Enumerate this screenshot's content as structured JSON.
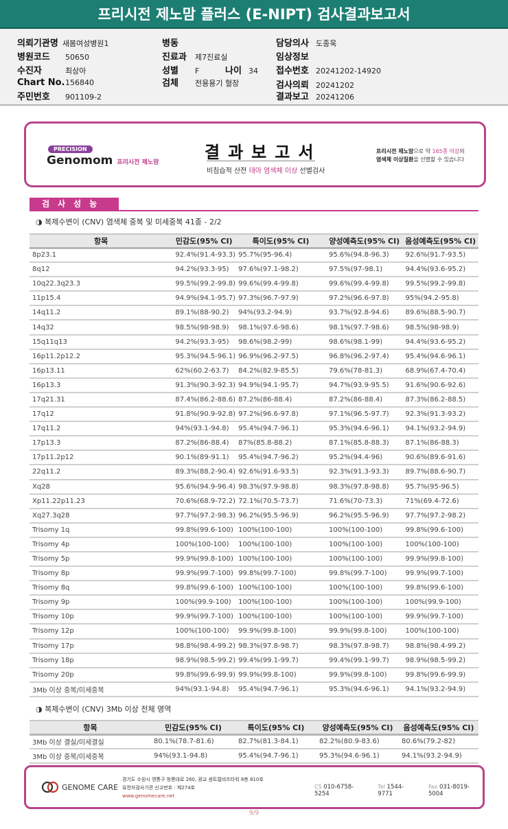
{
  "title": "프리시전 제노맘 플러스 (E-NIPT) 검사결과보고서",
  "patient": {
    "hospital_label": "의뢰기관명",
    "hospital": "새봄여성병원1",
    "code_label": "병원코드",
    "code": "50650",
    "name_label": "수진자",
    "name": "최상아",
    "chart_label": "Chart No.",
    "chart": "156840",
    "rrn_label": "주민번호",
    "rrn": "901109-2",
    "ward_label": "병동",
    "ward": "",
    "dept_label": "진료과",
    "dept": "제7진료실",
    "sex_label": "성별",
    "sex": "F",
    "age_label": "나이",
    "age": "34",
    "specimen_label": "검체",
    "specimen": "전용용기 혈장",
    "doctor_label": "담당의사",
    "doctor": "도종욱",
    "clinical_label": "임상정보",
    "clinical": "",
    "receipt_label": "접수번호",
    "receipt": "20241202-14920",
    "request_label": "검사의뢰",
    "request": "20241202",
    "report_label": "결과보고",
    "report": "20241206"
  },
  "report_card": {
    "precision": "PRECISION",
    "brand": "Genomom",
    "brand_sub": "프리시전 제노맘",
    "title": "결과보고서",
    "subtitle_a": "비침습적 산전 ",
    "subtitle_b": "태아 염색체 이상",
    "subtitle_c": " 선별검사",
    "note_a": "프리시전 제노맘",
    "note_b": "으로 약 ",
    "note_c": "165종 이상",
    "note_d": "의",
    "note_e": "염색체 이상질환",
    "note_f": "을 선별할 수 있습니다"
  },
  "section": "검사성능",
  "table1": {
    "subtitle": "◑ 복제수변이 (CNV) 염색체 중복 및 미세중복 41종 - 2/2",
    "headers": [
      "항목",
      "민감도(95% CI)",
      "특이도(95% CI)",
      "양성예측도(95% CI)",
      "음성예측도(95% CI)"
    ],
    "rows": [
      [
        "8p23.1",
        "92.4%(91.4-93.3)",
        "95.7%(95-96.4)",
        "95.6%(94.8-96.3)",
        "92.6%(91.7-93.5)"
      ],
      [
        "8q12",
        "94.2%(93.3-95)",
        "97.6%(97.1-98.2)",
        "97.5%(97-98.1)",
        "94.4%(93.6-95.2)"
      ],
      [
        "10q22.3q23.3",
        "99.5%(99.2-99.8)",
        "99.6%(99.4-99.8)",
        "99.6%(99.4-99.8)",
        "99.5%(99.2-99.8)"
      ],
      [
        "11p15.4",
        "94.9%(94.1-95.7)",
        "97.3%(96.7-97.9)",
        "97.2%(96.6-97.8)",
        "95%(94.2-95.8)"
      ],
      [
        "14q11.2",
        "89.1%(88-90.2)",
        "94%(93.2-94.9)",
        "93.7%(92.8-94.6)",
        "89.6%(88.5-90.7)"
      ],
      [
        "14q32",
        "98.5%(98-98.9)",
        "98.1%(97.6-98.6)",
        "98.1%(97.7-98.6)",
        "98.5%(98-98.9)"
      ],
      [
        "15q11q13",
        "94.2%(93.3-95)",
        "98.6%(98.2-99)",
        "98.6%(98.1-99)",
        "94.4%(93.6-95.2)"
      ],
      [
        "16p11.2p12.2",
        "95.3%(94.5-96.1)",
        "96.9%(96.2-97.5)",
        "96.8%(96.2-97.4)",
        "95.4%(94.6-96.1)"
      ],
      [
        "16p13.11",
        "62%(60.2-63.7)",
        "84.2%(82.9-85.5)",
        "79.6%(78-81.3)",
        "68.9%(67.4-70.4)"
      ],
      [
        "16p13.3",
        "91.3%(90.3-92.3)",
        "94.9%(94.1-95.7)",
        "94.7%(93.9-95.5)",
        "91.6%(90.6-92.6)"
      ],
      [
        "17q21.31",
        "87.4%(86.2-88.6)",
        "87.2%(86-88.4)",
        "87.2%(86-88.4)",
        "87.3%(86.2-88.5)"
      ],
      [
        "17q12",
        "91.8%(90.9-92.8)",
        "97.2%(96.6-97.8)",
        "97.1%(96.5-97.7)",
        "92.3%(91.3-93.2)"
      ],
      [
        "17q11.2",
        "94%(93.1-94.8)",
        "95.4%(94.7-96.1)",
        "95.3%(94.6-96.1)",
        "94.1%(93.2-94.9)"
      ],
      [
        "17p13.3",
        "87.2%(86-88.4)",
        "87%(85.8-88.2)",
        "87.1%(85.8-88.3)",
        "87.1%(86-88.3)"
      ],
      [
        "17p11.2p12",
        "90.1%(89-91.1)",
        "95.4%(94.7-96.2)",
        "95.2%(94.4-96)",
        "90.6%(89.6-91.6)"
      ],
      [
        "22q11.2",
        "89.3%(88.2-90.4)",
        "92.6%(91.6-93.5)",
        "92.3%(91.3-93.3)",
        "89.7%(88.6-90.7)"
      ],
      [
        "Xq28",
        "95.6%(94.9-96.4)",
        "98.3%(97.9-98.8)",
        "98.3%(97.8-98.8)",
        "95.7%(95-96.5)"
      ],
      [
        "Xp11.22p11.23",
        "70.6%(68.9-72.2)",
        "72.1%(70.5-73.7)",
        "71.6%(70-73.3)",
        "71%(69.4-72.6)"
      ],
      [
        "Xq27.3q28",
        "97.7%(97.2-98.3)",
        "96.2%(95.5-96.9)",
        "96.2%(95.5-96.9)",
        "97.7%(97.2-98.2)"
      ],
      [
        "Trisomy 1q",
        "99.8%(99.6-100)",
        "100%(100-100)",
        "100%(100-100)",
        "99.8%(99.6-100)"
      ],
      [
        "Trisomy 4p",
        "100%(100-100)",
        "100%(100-100)",
        "100%(100-100)",
        "100%(100-100)"
      ],
      [
        "Trisomy 5p",
        "99.9%(99.8-100)",
        "100%(100-100)",
        "100%(100-100)",
        "99.9%(99.8-100)"
      ],
      [
        "Trisomy 8p",
        "99.9%(99.7-100)",
        "99.8%(99.7-100)",
        "99.8%(99.7-100)",
        "99.9%(99.7-100)"
      ],
      [
        "Trisomy 8q",
        "99.8%(99.6-100)",
        "100%(100-100)",
        "100%(100-100)",
        "99.8%(99.6-100)"
      ],
      [
        "Trisomy 9p",
        "100%(99.9-100)",
        "100%(100-100)",
        "100%(100-100)",
        "100%(99.9-100)"
      ],
      [
        "Trisomy 10p",
        "99.9%(99.7-100)",
        "100%(100-100)",
        "100%(100-100)",
        "99.9%(99.7-100)"
      ],
      [
        "Trisomy 12p",
        "100%(100-100)",
        "99.9%(99.8-100)",
        "99.9%(99.8-100)",
        "100%(100-100)"
      ],
      [
        "Trisomy 17p",
        "98.8%(98.4-99.2)",
        "98.3%(97.8-98.7)",
        "98.3%(97.8-98.7)",
        "98.8%(98.4-99.2)"
      ],
      [
        "Trisomy 18p",
        "98.9%(98.5-99.2)",
        "99.4%(99.1-99.7)",
        "99.4%(99.1-99.7)",
        "98.9%(98.5-99.2)"
      ],
      [
        "Trisomy 20p",
        "99.8%(99.6-99.9)",
        "99.9%(99.8-100)",
        "99.9%(99.8-100)",
        "99.8%(99.6-99.9)"
      ],
      [
        "3Mb 이상 중복/미세중복",
        "94%(93.1-94.8)",
        "95.4%(94.7-96.1)",
        "95.3%(94.6-96.1)",
        "94.1%(93.2-94.9)"
      ]
    ]
  },
  "table2": {
    "subtitle": "◑ 복제수변이 (CNV) 3Mb 이상 전체 영역",
    "headers": [
      "항목",
      "민감도(95% CI)",
      "특이도(95% CI)",
      "양성예측도(95% CI)",
      "음성예측도(95% CI)"
    ],
    "rows": [
      [
        "3Mb 이상 결실/미세결실",
        "80.1%(78.7-81.6)",
        "82.7%(81.3-84.1)",
        "82.2%(80.9-83.6)",
        "80.6%(79.2-82)"
      ],
      [
        "3Mb 이상 중복/미세중복",
        "94%(93.1-94.8)",
        "95.4%(94.7-96.1)",
        "95.3%(94.6-96.1)",
        "94.1%(93.2-94.9)"
      ]
    ]
  },
  "footer": {
    "logo": "GENOME CARE",
    "address": "경기도 수원시 영통구 창룡대로 260, 광교 센트럴비즈타워 8층 810호",
    "license": "유전자검사기관 신고번호 : 제274호",
    "website": "www.genomecare.net",
    "cs_label": "CS",
    "cs": "010-6758-5254",
    "tel_label": "Tel",
    "tel": "1544-9771",
    "fax_label": "Fax",
    "fax": "031-8019-5004"
  },
  "page": "9/9",
  "colors": {
    "title_bar": "#1d7f73",
    "accent": "#c83a8c"
  }
}
